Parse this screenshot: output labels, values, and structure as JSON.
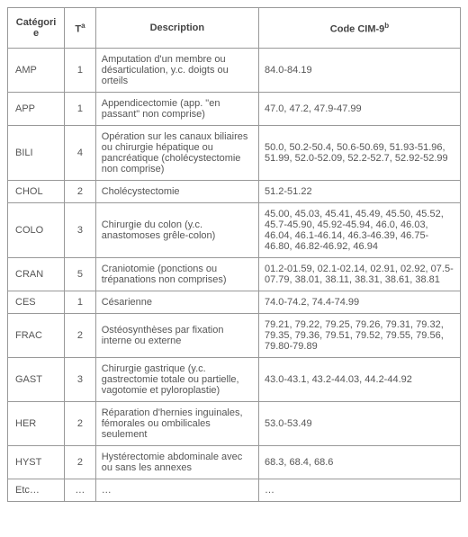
{
  "table": {
    "columns": {
      "category": "Catégorie",
      "t_label": "T",
      "t_sup": "a",
      "description": "Description",
      "code_label": "Code CIM-9",
      "code_sup": "b"
    },
    "rows": [
      {
        "category": "AMP",
        "t": "1",
        "description": "Amputation d'un membre ou désarticulation, y.c. doigts ou orteils",
        "code": "84.0-84.19"
      },
      {
        "category": "APP",
        "t": "1",
        "description": "Appendicectomie (app. \"en passant\" non comprise)",
        "code": "47.0, 47.2, 47.9-47.99"
      },
      {
        "category": "BILI",
        "t": "4",
        "description": "Opération sur les canaux biliaires ou chirurgie hépatique ou pancréatique (cholécystectomie non comprise)",
        "code": "50.0, 50.2-50.4, 50.6-50.69, 51.93-51.96, 51.99, 52.0-52.09, 52.2-52.7, 52.92-52.99"
      },
      {
        "category": "CHOL",
        "t": "2",
        "description": "Cholécystectomie",
        "code": "51.2-51.22"
      },
      {
        "category": "COLO",
        "t": "3",
        "description": "Chirurgie du colon (y.c. anastomoses grêle-colon)",
        "code": "45.00, 45.03, 45.41, 45.49, 45.50, 45.52, 45.7-45.90, 45.92-45.94, 46.0, 46.03, 46.04, 46.1-46.14, 46.3-46.39, 46.75-46.80, 46.82-46.92, 46.94"
      },
      {
        "category": "CRAN",
        "t": "5",
        "description": "Craniotomie (ponctions ou trépanations non comprises)",
        "code": "01.2-01.59, 02.1-02.14, 02.91, 02.92, 07.5-07.79, 38.01, 38.11, 38.31, 38.61, 38.81"
      },
      {
        "category": "CES",
        "t": "1",
        "description": "Césarienne",
        "code": "74.0-74.2, 74.4-74.99"
      },
      {
        "category": "FRAC",
        "t": "2",
        "description": "Ostéosynthèses par fixation interne ou externe",
        "code": "79.21, 79.22, 79.25, 79.26, 79.31, 79.32, 79.35, 79.36, 79.51, 79.52, 79.55, 79.56, 79.80-79.89"
      },
      {
        "category": "GAST",
        "t": "3",
        "description": "Chirurgie gastrique (y.c. gastrectomie totale ou partielle, vagotomie et pyloroplastie)",
        "code": "43.0-43.1, 43.2-44.03, 44.2-44.92"
      },
      {
        "category": "HER",
        "t": "2",
        "description": "Réparation d'hernies inguinales, fémorales ou ombilicales seulement",
        "code": "53.0-53.49"
      },
      {
        "category": "HYST",
        "t": "2",
        "description": "Hystérectomie abdominale avec ou sans les annexes",
        "code": "68.3, 68.4, 68.6"
      },
      {
        "category": "Etc…",
        "t": "…",
        "description": "…",
        "code": "…"
      }
    ]
  }
}
